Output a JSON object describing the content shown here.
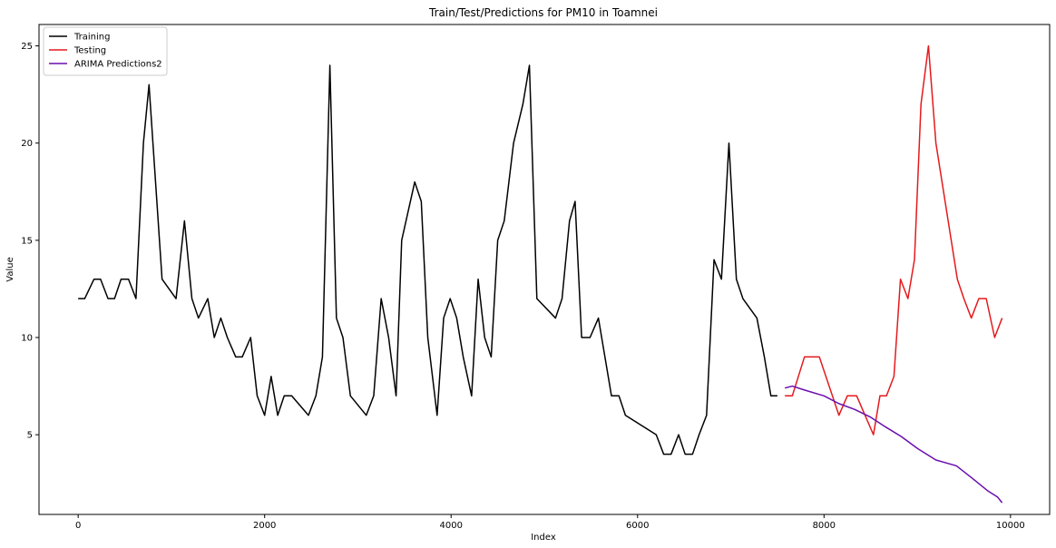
{
  "chart_data": {
    "type": "line",
    "title": "Train/Test/Predictions for PM10 in Toamnei",
    "xlabel": "Index",
    "ylabel": "Value",
    "xlim": [
      -420,
      10420
    ],
    "ylim": [
      0.9,
      26.1
    ],
    "xticks": [
      0,
      2000,
      4000,
      6000,
      8000,
      10000
    ],
    "yticks": [
      5,
      10,
      15,
      20,
      25
    ],
    "grid": false,
    "legend_position": "top-left",
    "series": [
      {
        "name": "Training",
        "color": "#000000",
        "x": [
          0,
          70,
          170,
          240,
          320,
          390,
          460,
          540,
          620,
          700,
          760,
          830,
          900,
          1050,
          1140,
          1220,
          1290,
          1390,
          1460,
          1530,
          1600,
          1690,
          1760,
          1850,
          1920,
          2000,
          2070,
          2140,
          2210,
          2290,
          2470,
          2550,
          2620,
          2700,
          2770,
          2840,
          2920,
          3090,
          3170,
          3250,
          3330,
          3410,
          3470,
          3610,
          3680,
          3750,
          3850,
          3920,
          3990,
          4060,
          4130,
          4220,
          4290,
          4360,
          4430,
          4500,
          4570,
          4670,
          4770,
          4840,
          4920,
          5120,
          5190,
          5270,
          5330,
          5400,
          5490,
          5580,
          5650,
          5720,
          5800,
          5870,
          6200,
          6280,
          6360,
          6440,
          6510,
          6590,
          6660,
          6740,
          6820,
          6900,
          6980,
          7060,
          7130,
          7280,
          7360,
          7430,
          7500
        ],
        "y": [
          12,
          12,
          13,
          13,
          12,
          12,
          13,
          13,
          12,
          20,
          23,
          18,
          13,
          12,
          16,
          12,
          11,
          12,
          10,
          11,
          10,
          9,
          9,
          10,
          7,
          6,
          8,
          6,
          7,
          7,
          6,
          7,
          9,
          24,
          11,
          10,
          7,
          6,
          7,
          12,
          10,
          7,
          15,
          18,
          17,
          10,
          6,
          11,
          12,
          11,
          9,
          7,
          13,
          10,
          9,
          15,
          16,
          20,
          22,
          24,
          12,
          11,
          12,
          16,
          17,
          10,
          10,
          11,
          9,
          7,
          7,
          6,
          5,
          4,
          4,
          5,
          4,
          4,
          5,
          6,
          14,
          13,
          20,
          13,
          12,
          11,
          9,
          7,
          7
        ]
      },
      {
        "name": "Testing",
        "color": "#e41a1c",
        "x": [
          7580,
          7660,
          7790,
          7950,
          8160,
          8250,
          8350,
          8530,
          8600,
          8670,
          8750,
          8820,
          8900,
          8970,
          9040,
          9120,
          9200,
          9430,
          9500,
          9580,
          9660,
          9740,
          9830,
          9910
        ],
        "y": [
          7,
          7,
          9,
          9,
          6,
          7,
          7,
          5,
          7,
          7,
          8,
          13,
          12,
          14,
          22,
          25,
          20,
          13,
          12,
          11,
          12,
          12,
          10,
          11
        ]
      },
      {
        "name": "ARIMA Predictions2",
        "color": "#6a0dad",
        "x": [
          7580,
          7660,
          7790,
          8000,
          8160,
          8330,
          8500,
          8660,
          8830,
          9000,
          9200,
          9420,
          9580,
          9760,
          9860,
          9910
        ],
        "y": [
          7.4,
          7.5,
          7.3,
          7.0,
          6.6,
          6.3,
          5.9,
          5.4,
          4.9,
          4.3,
          3.7,
          3.4,
          2.8,
          2.1,
          1.8,
          1.5
        ]
      }
    ]
  }
}
